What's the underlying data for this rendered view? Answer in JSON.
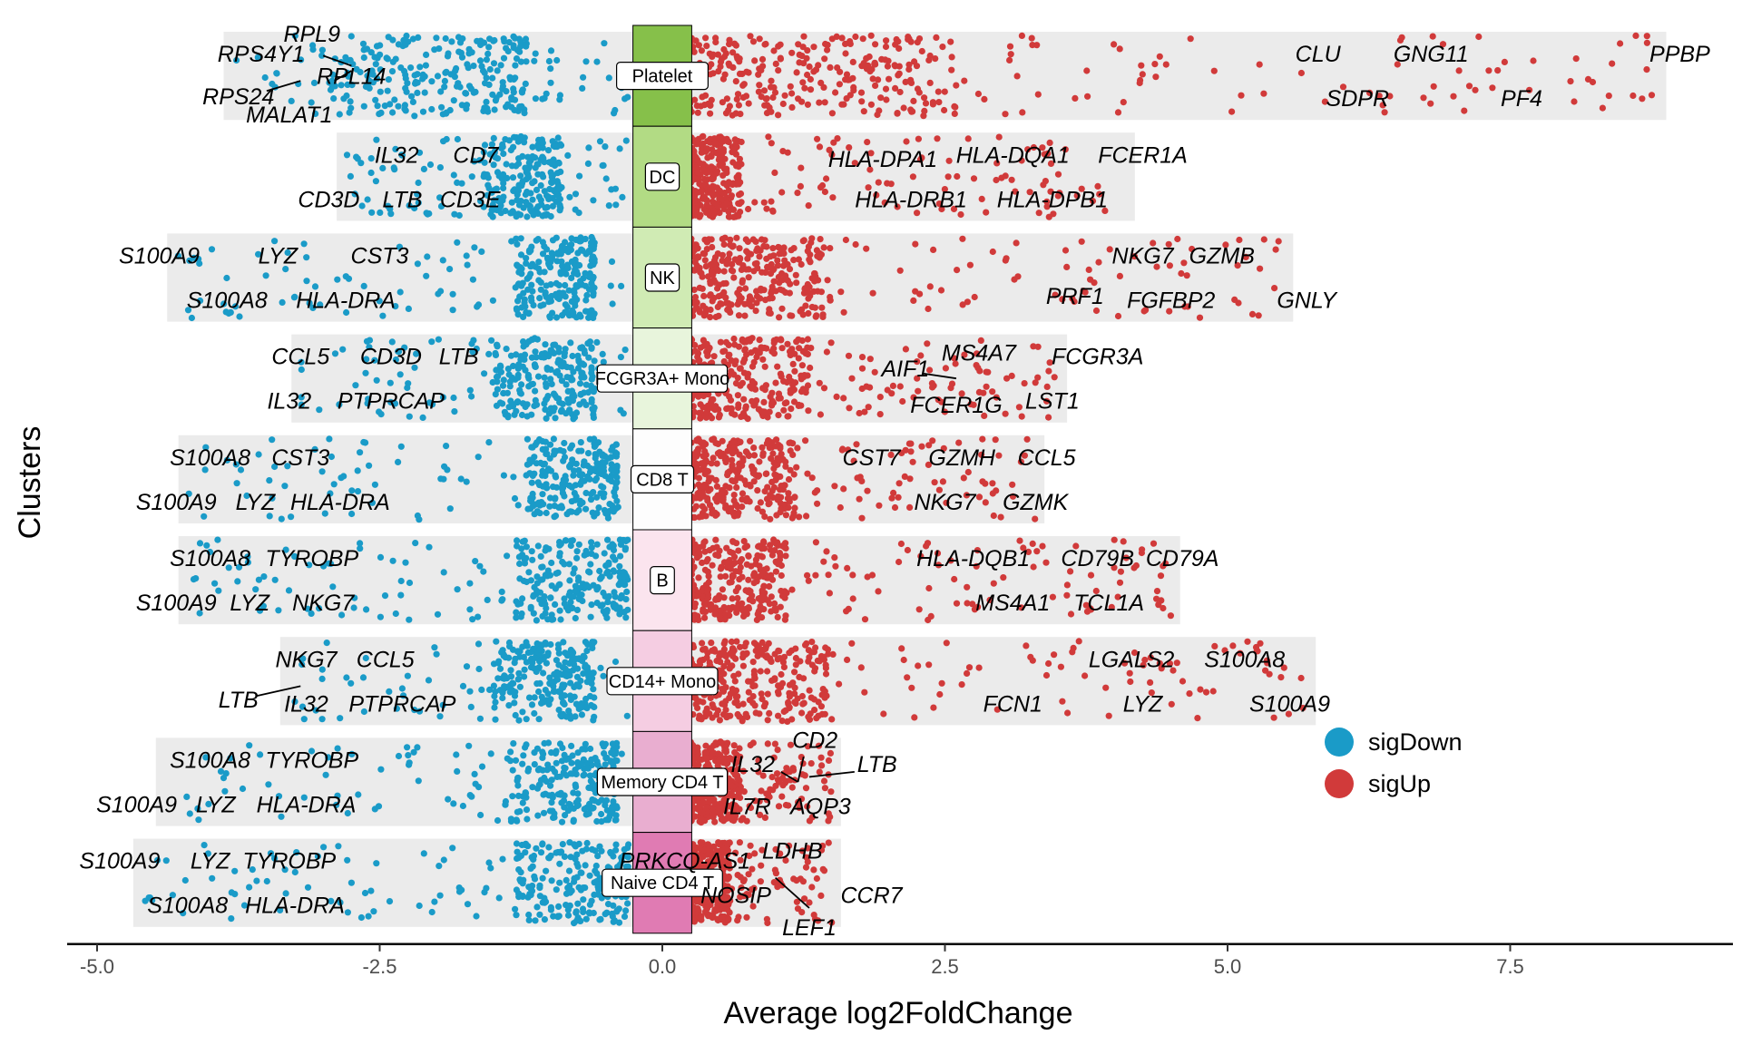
{
  "chart_data": {
    "type": "scatter",
    "xlabel": "Average log2FoldChange",
    "ylabel": "Clusters",
    "xlim": [
      -5.0,
      9.2
    ],
    "xticks": [
      -5.0,
      -2.5,
      0.0,
      2.5,
      5.0,
      7.5
    ],
    "xtick_labels": [
      "-5.0",
      "-2.5",
      "0.0",
      "2.5",
      "5.0",
      "7.5"
    ],
    "grid": false,
    "legend_position": "right",
    "legend": [
      {
        "name": "sigDown",
        "color": "#1a9bc8"
      },
      {
        "name": "sigUp",
        "color": "#d13a3a"
      }
    ],
    "clusters": [
      {
        "name": "Platelet",
        "color": "#86c04a",
        "down_range": [
          -3.8,
          -0.3
        ],
        "up_range": [
          0.3,
          8.8
        ],
        "up_density": [
          0.2,
          2.6
        ],
        "down_density": [
          -1.2,
          -3.0
        ],
        "labels": [
          {
            "text": "RPS4Y1",
            "x": -3.55,
            "row": 0.72,
            "side": "down"
          },
          {
            "text": "RPL9",
            "x": -3.1,
            "row": 0.92,
            "side": "down"
          },
          {
            "text": "RPL14",
            "x": -2.75,
            "row": 0.5,
            "side": "down"
          },
          {
            "text": "RPS24",
            "x": -3.75,
            "row": 0.3,
            "side": "down"
          },
          {
            "text": "MALAT1",
            "x": -3.3,
            "row": 0.12,
            "side": "down"
          },
          {
            "text": "CLU",
            "x": 5.8,
            "row": 0.72,
            "side": "up"
          },
          {
            "text": "GNG11",
            "x": 6.8,
            "row": 0.72,
            "side": "up"
          },
          {
            "text": "PPBP",
            "x": 9.0,
            "row": 0.72,
            "side": "up"
          },
          {
            "text": "SDPR",
            "x": 6.15,
            "row": 0.28,
            "side": "up"
          },
          {
            "text": "PF4",
            "x": 7.6,
            "row": 0.28,
            "side": "up"
          }
        ]
      },
      {
        "name": "DC",
        "color": "#b2db84",
        "down_range": [
          -2.8,
          -0.3
        ],
        "up_range": [
          0.3,
          4.1
        ],
        "up_density": [
          0.25,
          0.7
        ],
        "down_density": [
          -0.9,
          -1.6
        ],
        "labels": [
          {
            "text": "IL32",
            "x": -2.35,
            "row": 0.72,
            "side": "down"
          },
          {
            "text": "CD7",
            "x": -1.65,
            "row": 0.72,
            "side": "down"
          },
          {
            "text": "CD3D",
            "x": -2.95,
            "row": 0.28,
            "side": "down"
          },
          {
            "text": "LTB",
            "x": -2.3,
            "row": 0.28,
            "side": "down"
          },
          {
            "text": "CD3E",
            "x": -1.7,
            "row": 0.28,
            "side": "down"
          },
          {
            "text": "HLA-DPA1",
            "x": 1.95,
            "row": 0.68,
            "side": "up"
          },
          {
            "text": "HLA-DQA1",
            "x": 3.1,
            "row": 0.72,
            "side": "up"
          },
          {
            "text": "FCER1A",
            "x": 4.25,
            "row": 0.72,
            "side": "up"
          },
          {
            "text": "HLA-DRB1",
            "x": 2.2,
            "row": 0.28,
            "side": "up"
          },
          {
            "text": "HLA-DPB1",
            "x": 3.45,
            "row": 0.28,
            "side": "up"
          }
        ]
      },
      {
        "name": "NK",
        "color": "#d0ebb4",
        "down_range": [
          -4.3,
          -0.3
        ],
        "up_range": [
          0.3,
          5.5
        ],
        "up_density": [
          0.25,
          1.5
        ],
        "down_density": [
          -0.6,
          -1.3
        ],
        "labels": [
          {
            "text": "S100A9",
            "x": -4.45,
            "row": 0.72,
            "side": "down"
          },
          {
            "text": "LYZ",
            "x": -3.4,
            "row": 0.72,
            "side": "down"
          },
          {
            "text": "CST3",
            "x": -2.5,
            "row": 0.72,
            "side": "down"
          },
          {
            "text": "S100A8",
            "x": -3.85,
            "row": 0.28,
            "side": "down"
          },
          {
            "text": "HLA-DRA",
            "x": -2.8,
            "row": 0.28,
            "side": "down"
          },
          {
            "text": "NKG7",
            "x": 4.25,
            "row": 0.72,
            "side": "up"
          },
          {
            "text": "GZMB",
            "x": 4.95,
            "row": 0.72,
            "side": "up"
          },
          {
            "text": "PRF1",
            "x": 3.65,
            "row": 0.32,
            "side": "up"
          },
          {
            "text": "FGFBP2",
            "x": 4.5,
            "row": 0.28,
            "side": "up"
          },
          {
            "text": "GNLY",
            "x": 5.7,
            "row": 0.28,
            "side": "up"
          }
        ]
      },
      {
        "name": "FCGR3A+ Mono",
        "color": "#e8f5dc",
        "down_range": [
          -3.2,
          -0.3
        ],
        "up_range": [
          0.3,
          3.5
        ],
        "up_density": [
          0.25,
          1.3
        ],
        "down_density": [
          -0.6,
          -1.5
        ],
        "labels": [
          {
            "text": "CCL5",
            "x": -3.2,
            "row": 0.72,
            "side": "down"
          },
          {
            "text": "CD3D",
            "x": -2.4,
            "row": 0.72,
            "side": "down"
          },
          {
            "text": "LTB",
            "x": -1.8,
            "row": 0.72,
            "side": "down"
          },
          {
            "text": "IL32",
            "x": -3.3,
            "row": 0.28,
            "side": "down"
          },
          {
            "text": "PTPRCAP",
            "x": -2.4,
            "row": 0.28,
            "side": "down"
          },
          {
            "text": "AIF1",
            "x": 2.15,
            "row": 0.6,
            "side": "up"
          },
          {
            "text": "MS4A7",
            "x": 2.8,
            "row": 0.76,
            "side": "up"
          },
          {
            "text": "FCGR3A",
            "x": 3.85,
            "row": 0.72,
            "side": "up"
          },
          {
            "text": "FCER1G",
            "x": 2.6,
            "row": 0.24,
            "side": "up"
          },
          {
            "text": "LST1",
            "x": 3.45,
            "row": 0.28,
            "side": "up"
          }
        ]
      },
      {
        "name": "CD8 T",
        "color": "#fdfdfd",
        "down_range": [
          -4.2,
          -0.3
        ],
        "up_range": [
          0.3,
          3.3
        ],
        "up_density": [
          0.25,
          1.2
        ],
        "down_density": [
          -0.4,
          -1.2
        ],
        "labels": [
          {
            "text": "S100A8",
            "x": -4.0,
            "row": 0.72,
            "side": "down"
          },
          {
            "text": "CST3",
            "x": -3.2,
            "row": 0.72,
            "side": "down"
          },
          {
            "text": "S100A9",
            "x": -4.3,
            "row": 0.28,
            "side": "down"
          },
          {
            "text": "LYZ",
            "x": -3.6,
            "row": 0.28,
            "side": "down"
          },
          {
            "text": "HLA-DRA",
            "x": -2.85,
            "row": 0.28,
            "side": "down"
          },
          {
            "text": "CST7",
            "x": 1.85,
            "row": 0.72,
            "side": "up"
          },
          {
            "text": "GZMH",
            "x": 2.65,
            "row": 0.72,
            "side": "up"
          },
          {
            "text": "CCL5",
            "x": 3.4,
            "row": 0.72,
            "side": "up"
          },
          {
            "text": "NKG7",
            "x": 2.5,
            "row": 0.28,
            "side": "up"
          },
          {
            "text": "GZMK",
            "x": 3.3,
            "row": 0.28,
            "side": "up"
          }
        ]
      },
      {
        "name": "B",
        "color": "#fbe4ee",
        "down_range": [
          -4.2,
          -0.3
        ],
        "up_range": [
          0.3,
          4.5
        ],
        "up_density": [
          0.25,
          1.1
        ],
        "down_density": [
          -0.3,
          -1.3
        ],
        "labels": [
          {
            "text": "S100A8",
            "x": -4.0,
            "row": 0.72,
            "side": "down"
          },
          {
            "text": "TYROBP",
            "x": -3.1,
            "row": 0.72,
            "side": "down"
          },
          {
            "text": "S100A9",
            "x": -4.3,
            "row": 0.28,
            "side": "down"
          },
          {
            "text": "LYZ",
            "x": -3.65,
            "row": 0.28,
            "side": "down"
          },
          {
            "text": "NKG7",
            "x": -3.0,
            "row": 0.28,
            "side": "down"
          },
          {
            "text": "HLA-DQB1",
            "x": 2.75,
            "row": 0.72,
            "side": "up"
          },
          {
            "text": "CD79B",
            "x": 3.85,
            "row": 0.72,
            "side": "up"
          },
          {
            "text": "CD79A",
            "x": 4.6,
            "row": 0.72,
            "side": "up"
          },
          {
            "text": "MS4A1",
            "x": 3.1,
            "row": 0.28,
            "side": "up"
          },
          {
            "text": "TCL1A",
            "x": 3.95,
            "row": 0.28,
            "side": "up"
          }
        ]
      },
      {
        "name": "CD14+ Mono",
        "color": "#f5cde2",
        "down_range": [
          -3.3,
          -0.3
        ],
        "up_range": [
          0.3,
          5.7
        ],
        "up_density": [
          0.25,
          1.5
        ],
        "down_density": [
          -0.6,
          -1.5
        ],
        "labels": [
          {
            "text": "NKG7",
            "x": -3.15,
            "row": 0.72,
            "side": "down"
          },
          {
            "text": "CCL5",
            "x": -2.45,
            "row": 0.72,
            "side": "down"
          },
          {
            "text": "LTB",
            "x": -3.75,
            "row": 0.32,
            "side": "down"
          },
          {
            "text": "IL32",
            "x": -3.15,
            "row": 0.28,
            "side": "down"
          },
          {
            "text": "PTPRCAP",
            "x": -2.3,
            "row": 0.28,
            "side": "down"
          },
          {
            "text": "LGALS2",
            "x": 4.15,
            "row": 0.72,
            "side": "up"
          },
          {
            "text": "S100A8",
            "x": 5.15,
            "row": 0.72,
            "side": "up"
          },
          {
            "text": "LYZ",
            "x": 4.25,
            "row": 0.28,
            "side": "up"
          },
          {
            "text": "FCN1",
            "x": 3.1,
            "row": 0.28,
            "side": "up"
          },
          {
            "text": "S100A9",
            "x": 5.55,
            "row": 0.28,
            "side": "up"
          }
        ]
      },
      {
        "name": "Memory CD4 T",
        "color": "#e9aed0",
        "down_range": [
          -4.4,
          -0.3
        ],
        "up_range": [
          0.3,
          1.5
        ],
        "up_density": [
          0.25,
          0.7
        ],
        "down_density": [
          -0.4,
          -1.4
        ],
        "labels": [
          {
            "text": "S100A8",
            "x": -4.0,
            "row": 0.72,
            "side": "down"
          },
          {
            "text": "TYROBP",
            "x": -3.1,
            "row": 0.72,
            "side": "down"
          },
          {
            "text": "S100A9",
            "x": -4.65,
            "row": 0.28,
            "side": "down"
          },
          {
            "text": "LYZ",
            "x": -3.95,
            "row": 0.28,
            "side": "down"
          },
          {
            "text": "HLA-DRA",
            "x": -3.15,
            "row": 0.28,
            "side": "down"
          },
          {
            "text": "IL32",
            "x": 0.8,
            "row": 0.68,
            "side": "up"
          },
          {
            "text": "CD2",
            "x": 1.35,
            "row": 0.92,
            "side": "up"
          },
          {
            "text": "LTB",
            "x": 1.9,
            "row": 0.68,
            "side": "up"
          },
          {
            "text": "IL7R",
            "x": 0.75,
            "row": 0.26,
            "side": "up"
          },
          {
            "text": "AQP3",
            "x": 1.4,
            "row": 0.26,
            "side": "up"
          }
        ]
      },
      {
        "name": "Naive CD4 T",
        "color": "#e07bb3",
        "down_range": [
          -4.6,
          -0.3
        ],
        "up_range": [
          0.3,
          1.5
        ],
        "up_density": [
          0.25,
          0.6
        ],
        "down_density": [
          -0.3,
          -1.3
        ],
        "labels": [
          {
            "text": "S100A9",
            "x": -4.8,
            "row": 0.72,
            "side": "down"
          },
          {
            "text": "LYZ",
            "x": -4.0,
            "row": 0.72,
            "side": "down"
          },
          {
            "text": "TYROBP",
            "x": -3.3,
            "row": 0.72,
            "side": "down"
          },
          {
            "text": "S100A8",
            "x": -4.2,
            "row": 0.28,
            "side": "down"
          },
          {
            "text": "HLA-DRA",
            "x": -3.25,
            "row": 0.28,
            "side": "down"
          },
          {
            "text": "PRKCQ-AS1",
            "x": 0.2,
            "row": 0.72,
            "side": "up"
          },
          {
            "text": "LDHB",
            "x": 1.15,
            "row": 0.82,
            "side": "up"
          },
          {
            "text": "NOSIP",
            "x": 0.65,
            "row": 0.38,
            "side": "up"
          },
          {
            "text": "CCR7",
            "x": 1.85,
            "row": 0.38,
            "side": "up"
          },
          {
            "text": "LEF1",
            "x": 1.3,
            "row": 0.06,
            "side": "up"
          }
        ]
      }
    ]
  }
}
